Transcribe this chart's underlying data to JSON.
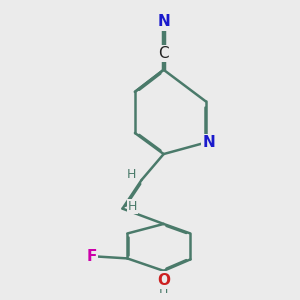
{
  "background_color": "#ebebeb",
  "bond_color": "#4a7a6a",
  "bond_width": 1.8,
  "atom_colors": {
    "N_pyridine": "#1a1acc",
    "N_nitrile": "#1a1acc",
    "F": "#cc00aa",
    "O": "#cc2020",
    "C": "#222222",
    "H": "#4a7a6a"
  },
  "font_size_atoms": 11,
  "font_size_h": 9,
  "font_size_cn": 11
}
